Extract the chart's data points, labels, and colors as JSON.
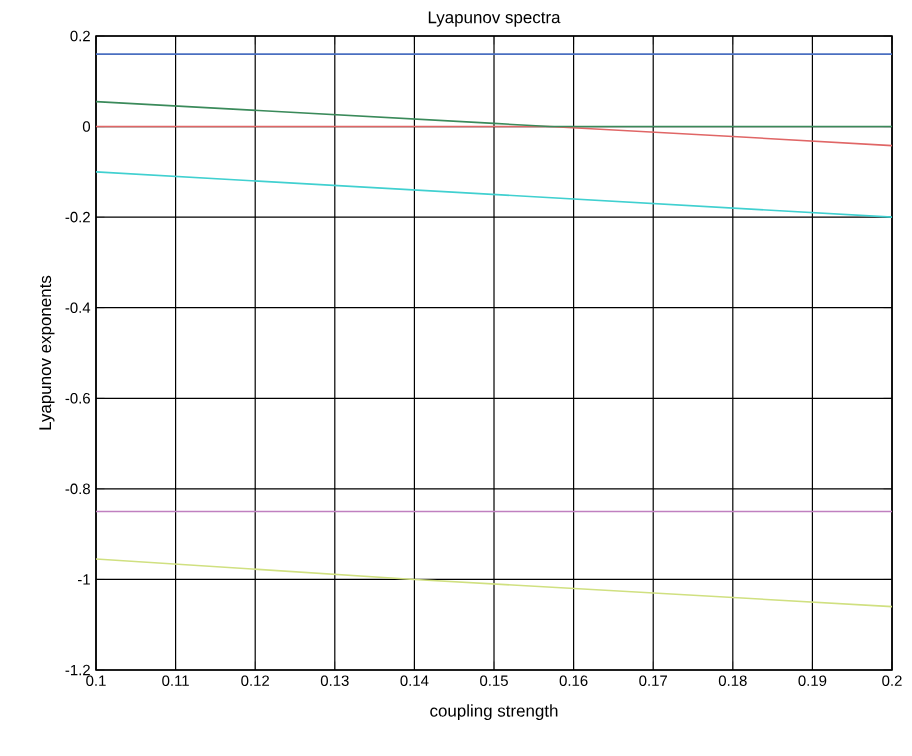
{
  "chart_data": {
    "type": "line",
    "title": "Lyapunov spectra",
    "xlabel": "coupling strength",
    "ylabel": "Lyapunov exponents",
    "xlim": [
      0.1,
      0.2
    ],
    "ylim": [
      -1.2,
      0.2
    ],
    "xticks": [
      0.1,
      0.11,
      0.12,
      0.13,
      0.14,
      0.15,
      0.16,
      0.17,
      0.18,
      0.19,
      0.2
    ],
    "yticks": [
      -1.2,
      -1,
      -0.8,
      -0.6,
      -0.4,
      -0.2,
      0,
      0.2
    ],
    "grid": true,
    "series": [
      {
        "color": "#4a6fc0",
        "x": [
          0.1,
          0.2
        ],
        "values": [
          0.16,
          0.16
        ]
      },
      {
        "color": "#e06666",
        "x": [
          0.1,
          0.157,
          0.18,
          0.2
        ],
        "values": [
          0,
          0,
          -0.022,
          -0.042
        ]
      },
      {
        "color": "#3a8a5a",
        "x": [
          0.1,
          0.15,
          0.157,
          0.2
        ],
        "values": [
          0.055,
          0.007,
          0,
          0
        ]
      },
      {
        "color": "#40d0d0",
        "x": [
          0.1,
          0.2
        ],
        "values": [
          -0.1,
          -0.2
        ]
      },
      {
        "color": "#c080c0",
        "x": [
          0.1,
          0.2
        ],
        "values": [
          -0.85,
          -0.85
        ]
      },
      {
        "color": "#d0e080",
        "x": [
          0.1,
          0.14,
          0.2
        ],
        "values": [
          -0.955,
          -1.0,
          -1.06
        ]
      }
    ]
  }
}
